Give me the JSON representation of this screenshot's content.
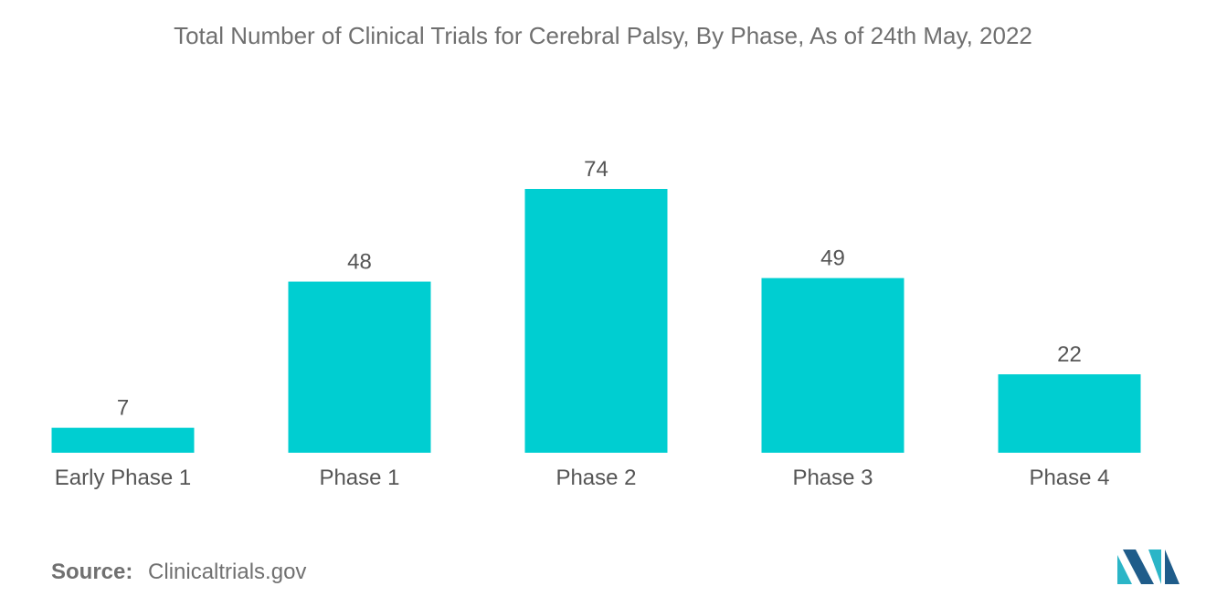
{
  "chart_data": {
    "type": "bar",
    "title": "Total Number of Clinical Trials for Cerebral Palsy, By Phase, As of 24th May, 2022",
    "categories": [
      "Early Phase 1",
      "Phase 1",
      "Phase 2",
      "Phase 3",
      "Phase 4"
    ],
    "values": [
      7,
      48,
      74,
      49,
      22
    ],
    "xlabel": "",
    "ylabel": "",
    "ylim": [
      0,
      74
    ],
    "grid": false,
    "legend": "none",
    "bar_color": "#00ced1"
  },
  "source": {
    "label": "Source:",
    "value": "Clinicaltrials.gov"
  },
  "logo": {
    "icon": "mordor-intelligence-logo-icon",
    "colors": [
      "#2bb5c7",
      "#1f5c8a"
    ]
  }
}
